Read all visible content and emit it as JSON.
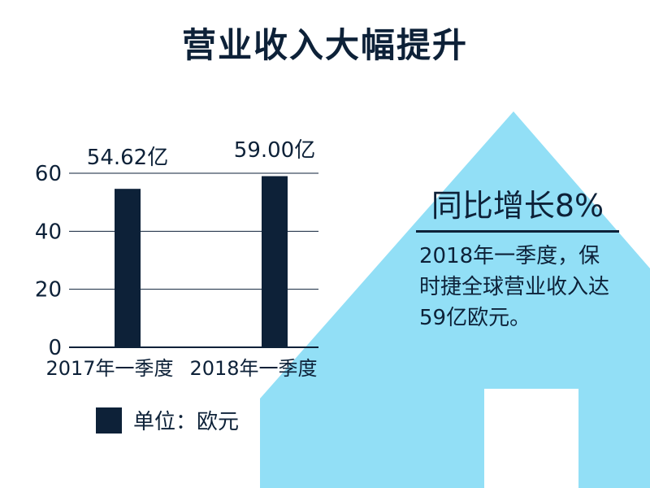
{
  "page": {
    "title": "营业收入大幅提升",
    "side_heading": "同比增长8%",
    "side_text": "2018年一季度，保时捷全球营业收入达59亿欧元。",
    "legend_label": "单位：欧元"
  },
  "colors": {
    "bar": "#0d2138",
    "arrow": "#92dff6",
    "text": "#0d2138"
  },
  "chart_data": {
    "type": "bar",
    "categories": [
      "2017年一季度",
      "2018年一季度"
    ],
    "values": [
      54.62,
      59.0
    ],
    "data_labels": [
      "54.62亿",
      "59.00亿"
    ],
    "ylim": [
      0,
      60
    ],
    "yticks": [
      0,
      20,
      40,
      60
    ],
    "grid": true,
    "legend_position": "bottom-left"
  }
}
